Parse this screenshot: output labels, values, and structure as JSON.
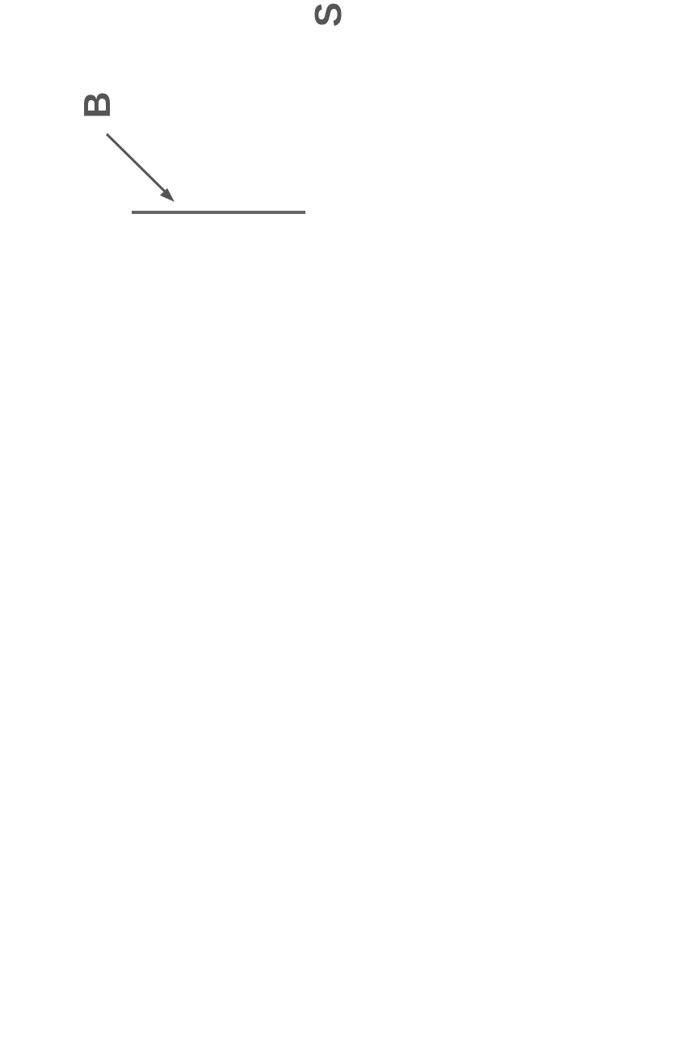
{
  "labels": {
    "figure": "S",
    "scale_bar": "B"
  }
}
